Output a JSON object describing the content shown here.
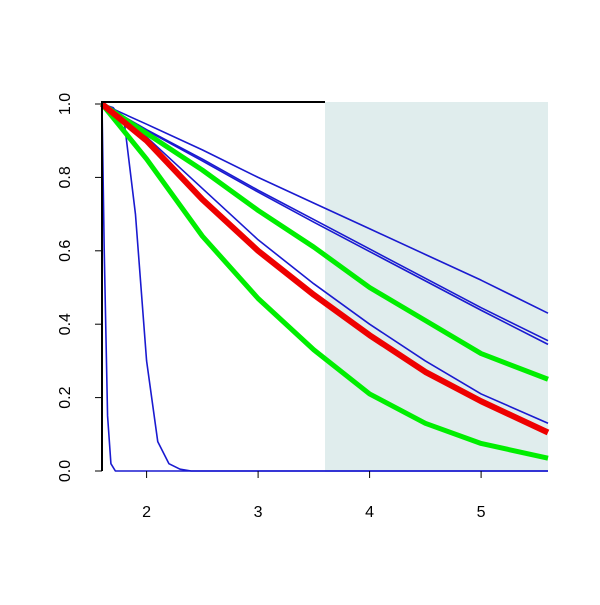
{
  "chart_data": {
    "type": "line",
    "xlim": [
      1.6,
      5.6
    ],
    "ylim": [
      0,
      1
    ],
    "xticks": [
      2,
      3,
      4,
      5
    ],
    "yticks": [
      {
        "value": 0,
        "label": "0.0"
      },
      0.2,
      0.4,
      0.6,
      0.8,
      {
        "value": 1,
        "label": "1.0"
      }
    ],
    "shaded_region": {
      "x": [
        3.6,
        5.6
      ],
      "color": "#e0eded"
    },
    "series": [
      {
        "color": "#1a1ad0",
        "lw": 1.6,
        "x": [
          1.6,
          1.62,
          1.65,
          1.68,
          1.72,
          5.6
        ],
        "values": [
          1,
          0.6,
          0.15,
          0.02,
          0,
          0
        ]
      },
      {
        "color": "#1a1ad0",
        "lw": 1.6,
        "x": [
          1.6,
          1.7,
          1.8,
          1.9,
          2.0,
          2.1,
          2.2,
          2.3,
          2.4,
          2.6,
          5.6
        ],
        "values": [
          1,
          0.99,
          0.95,
          0.7,
          0.3,
          0.08,
          0.02,
          0.005,
          0,
          0,
          0
        ]
      },
      {
        "color": "#1a1ad0",
        "lw": 1.6,
        "x": [
          1.6,
          2,
          2.5,
          3,
          3.5,
          4,
          4.5,
          5,
          5.6
        ],
        "values": [
          1,
          0.945,
          0.875,
          0.8,
          0.73,
          0.66,
          0.59,
          0.52,
          0.43
        ]
      },
      {
        "color": "#1a1ad0",
        "lw": 1.6,
        "x": [
          1.6,
          2,
          2.5,
          3,
          3.5,
          4,
          4.5,
          5,
          5.6
        ],
        "values": [
          1,
          0.93,
          0.85,
          0.765,
          0.685,
          0.605,
          0.525,
          0.445,
          0.355
        ]
      },
      {
        "color": "#1a1ad0",
        "lw": 1.6,
        "x": [
          1.6,
          2,
          2.5,
          3,
          3.5,
          4,
          4.5,
          5,
          5.6
        ],
        "values": [
          1,
          0.928,
          0.845,
          0.76,
          0.678,
          0.598,
          0.518,
          0.438,
          0.345
        ]
      },
      {
        "color": "#1a1ad0",
        "lw": 1.6,
        "x": [
          1.6,
          2,
          2.5,
          3,
          3.5,
          4,
          4.5,
          5,
          5.6
        ],
        "values": [
          1,
          0.91,
          0.77,
          0.63,
          0.51,
          0.4,
          0.3,
          0.21,
          0.13
        ]
      },
      {
        "color": "#00ee00",
        "lw": 5,
        "x": [
          1.6,
          2,
          2.5,
          3,
          3.5,
          4,
          4.5,
          5,
          5.6
        ],
        "values": [
          1,
          0.92,
          0.82,
          0.71,
          0.61,
          0.5,
          0.41,
          0.32,
          0.25
        ]
      },
      {
        "color": "#00ee00",
        "lw": 5,
        "x": [
          1.6,
          2,
          2.5,
          3,
          3.5,
          4,
          4.5,
          5,
          5.6
        ],
        "values": [
          1,
          0.85,
          0.64,
          0.47,
          0.33,
          0.21,
          0.13,
          0.075,
          0.035
        ]
      },
      {
        "color": "#ee0000",
        "lw": 6,
        "x": [
          1.6,
          2,
          2.5,
          3,
          3.5,
          4,
          4.5,
          5,
          5.6
        ],
        "values": [
          1,
          0.9,
          0.74,
          0.6,
          0.48,
          0.37,
          0.27,
          0.19,
          0.105
        ]
      }
    ]
  }
}
